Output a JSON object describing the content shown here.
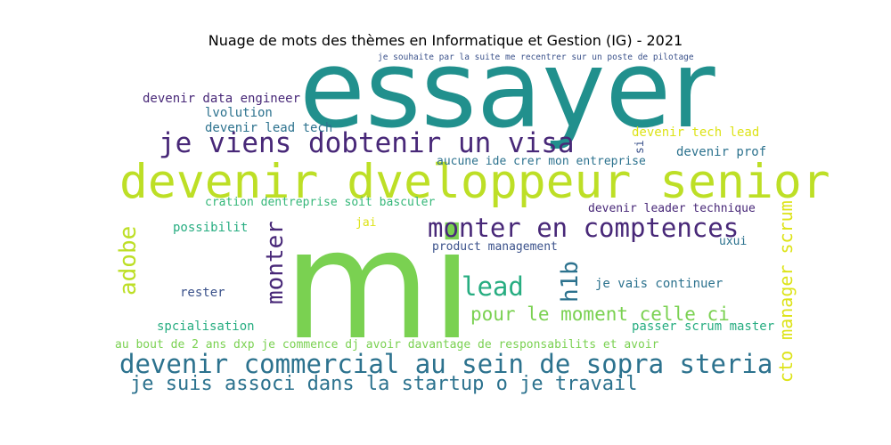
{
  "title": "Nuage de mots des thèmes en Informatique et Gestion (IG) - 2021",
  "colors": {
    "teal": "#21908d",
    "lime": "#bddf26",
    "green": "#7ad151",
    "purple": "#482878",
    "indigo": "#3b528b",
    "blue": "#2c728e",
    "mint": "#35b779",
    "yellow": "#dde318",
    "aqua": "#27ad81"
  },
  "words": {
    "essayer": "essayer",
    "mi": "mi",
    "devenir_developpeur_senior": "devenir dveloppeur senior",
    "je_viens_visa": "je viens dobtenir un visa",
    "monter_competences": "monter en comptences",
    "devenir_commercial": "devenir commercial au sein de sopra steria",
    "je_suis_associe": "je suis associ dans la startup o je travail",
    "au_bout": "au bout de 2 ans dxp je commence dj  avoir davantage de responsabilits et  avoir",
    "souhaite": "je souhaite par la suite me recentrer sur un poste de pilotage",
    "data_engineer": "devenir data engineer",
    "lvolution": "lvolution",
    "lead_tech": "devenir lead tech",
    "tech_lead": "devenir tech lead",
    "devenir_prof": "devenir prof",
    "aucune_idee": "aucune ide crer mon entreprise",
    "creation": "cration dentreprise soit basculer",
    "leader_technique": "devenir leader technique",
    "possibilit": "possibilit",
    "jai": "jai",
    "product_management": "product management",
    "uxui": "uxui",
    "lead": "lead",
    "je_vais_continuer": "je vais continuer",
    "rester": "rester",
    "pour_le_moment": "pour le moment celle ci",
    "specialisation": "spcialisation",
    "passer_scrum": "passer scrum master",
    "si": "si",
    "adobe": "adobe",
    "monter": "monter",
    "h1b": "h1b",
    "cto": "cto manager scrum"
  }
}
